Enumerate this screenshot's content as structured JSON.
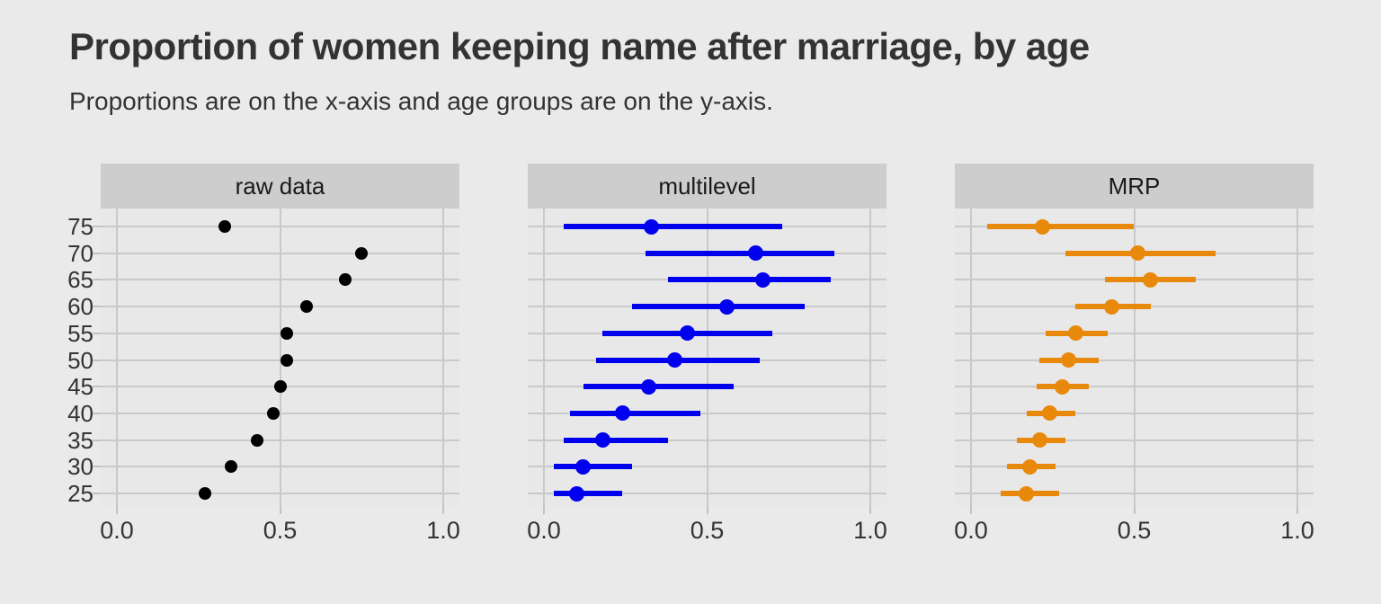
{
  "page": {
    "title": "Proportion of women keeping name after marriage, by age",
    "subtitle": "Proportions are on the x-axis and age groups are on the y-axis."
  },
  "chart_data": {
    "type": "scatter",
    "layout": "three horizontal facet panels sharing one y-axis; y is age group, x is proportion",
    "title": "Proportion of women keeping name after marriage, by age",
    "subtitle": "Proportions are on the x-axis and age groups are on the y-axis.",
    "ylabel": "",
    "xlabel": "",
    "y_categories": [
      "75",
      "70",
      "65",
      "60",
      "55",
      "50",
      "45",
      "40",
      "35",
      "30",
      "25"
    ],
    "x_tick_labels": [
      "0.0",
      "0.5",
      "1.0"
    ],
    "x_tick_values": [
      0,
      0.5,
      1
    ],
    "xlim": [
      -0.05,
      1.05
    ],
    "grid": "major gridlines only (each age row; x at 0.0, 0.5, 1.0), no minor gridlines, no legend",
    "panels": [
      {
        "label": "raw data",
        "mark": "point",
        "color": "#000000",
        "estimates": [
          0.33,
          0.75,
          0.7,
          0.58,
          0.52,
          0.52,
          0.5,
          0.48,
          0.43,
          0.35,
          0.27
        ]
      },
      {
        "label": "multilevel",
        "mark": "point-interval",
        "color": "#0000EE",
        "estimates": [
          0.33,
          0.65,
          0.67,
          0.56,
          0.44,
          0.4,
          0.32,
          0.24,
          0.18,
          0.12,
          0.1
        ],
        "lower": [
          0.06,
          0.31,
          0.38,
          0.27,
          0.18,
          0.16,
          0.12,
          0.08,
          0.06,
          0.03,
          0.03
        ],
        "upper": [
          0.73,
          0.89,
          0.88,
          0.8,
          0.7,
          0.66,
          0.58,
          0.48,
          0.38,
          0.27,
          0.24
        ]
      },
      {
        "label": "MRP",
        "mark": "point-interval",
        "color": "#E8890C",
        "estimates": [
          0.22,
          0.51,
          0.55,
          0.43,
          0.32,
          0.3,
          0.28,
          0.24,
          0.21,
          0.18,
          0.17
        ],
        "lower": [
          0.05,
          0.29,
          0.41,
          0.32,
          0.23,
          0.21,
          0.2,
          0.17,
          0.14,
          0.11,
          0.09
        ],
        "upper": [
          0.5,
          0.75,
          0.69,
          0.55,
          0.42,
          0.39,
          0.36,
          0.32,
          0.29,
          0.26,
          0.27
        ]
      }
    ],
    "colors": {
      "background": "#EAEAEA",
      "panel_background": "#E8E8E8",
      "strip_background": "#CDCDCD",
      "gridline": "#C9C9C9",
      "tick": "#C2C2C2",
      "text": "#333333"
    }
  }
}
